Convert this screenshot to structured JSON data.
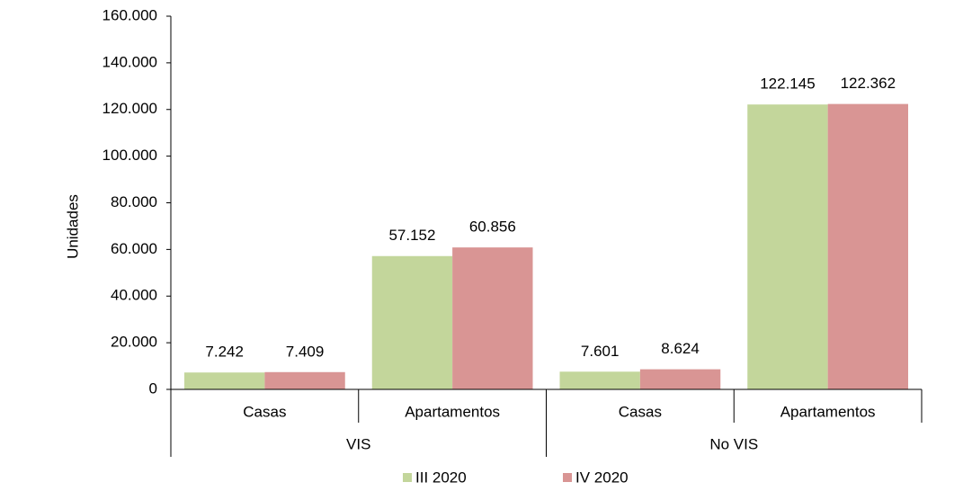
{
  "chart_data": {
    "type": "bar",
    "y_label": "Unidades",
    "groups": [
      {
        "name": "VIS",
        "categories": [
          "Casas",
          "Apartamentos"
        ]
      },
      {
        "name": "No VIS",
        "categories": [
          "Casas",
          "Apartamentos"
        ]
      }
    ],
    "series": [
      {
        "name": "III 2020",
        "color": "#c3d69b",
        "values": [
          7242,
          57152,
          7601,
          122145
        ],
        "value_labels": [
          "7.242",
          "57.152",
          "7.601",
          "122.145"
        ]
      },
      {
        "name": "IV 2020",
        "color": "#d99594",
        "values": [
          7409,
          60856,
          8624,
          122362
        ],
        "value_labels": [
          "7.409",
          "60.856",
          "8.624",
          "122.362"
        ]
      }
    ],
    "ylim": [
      0,
      160000
    ],
    "yticks": [
      0,
      {
        "value": 20000,
        "label": "20.000"
      },
      {
        "value": 40000,
        "label": "40.000"
      },
      {
        "value": 60000,
        "label": "60.000"
      },
      {
        "value": 80000,
        "label": "80.000"
      },
      {
        "value": 100000,
        "label": "100.000"
      },
      {
        "value": 120000,
        "label": "120.000"
      },
      {
        "value": 140000,
        "label": "140.000"
      },
      {
        "value": 160000,
        "label": "160.000"
      }
    ],
    "grid": false,
    "legend": "bottom"
  }
}
